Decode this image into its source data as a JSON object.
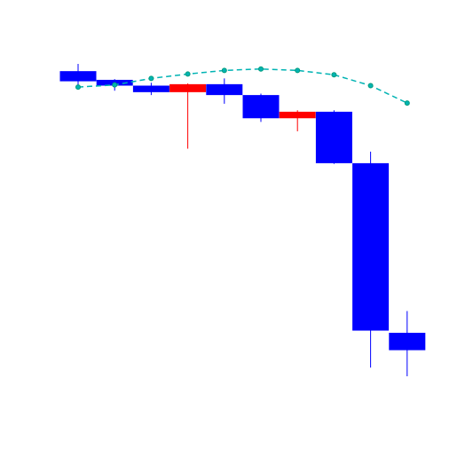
{
  "chart_data": {
    "type": "candlestick",
    "title": "",
    "xlabel": "",
    "ylabel": "",
    "axes_visible": false,
    "grid": false,
    "ylim": [
      -230,
      30
    ],
    "colors": {
      "up": "#ff0000",
      "down": "#0000ff",
      "overlay_line": "#00b3b3",
      "overlay_marker": "#009b7a"
    },
    "series": [
      {
        "x": 1,
        "open": 0.0,
        "close": -7.0,
        "high": 5.0,
        "low": -12.5
      },
      {
        "x": 2,
        "open": -6.0,
        "close": -10.0,
        "high": -5.5,
        "low": -13.5
      },
      {
        "x": 3,
        "open": -10.0,
        "close": -14.5,
        "high": -8.0,
        "low": -16.5
      },
      {
        "x": 4,
        "open": -14.5,
        "close": -9.0,
        "high": -8.5,
        "low": -53.5
      },
      {
        "x": 5,
        "open": -9.0,
        "close": -16.5,
        "high": -5.0,
        "low": -22.5
      },
      {
        "x": 6,
        "open": -16.5,
        "close": -32.5,
        "high": -15.5,
        "low": -35.0
      },
      {
        "x": 7,
        "open": -32.5,
        "close": -28.0,
        "high": -27.0,
        "low": -41.5
      },
      {
        "x": 8,
        "open": -28.0,
        "close": -63.5,
        "high": -27.0,
        "low": -64.0
      },
      {
        "x": 9,
        "open": -63.5,
        "close": -179.0,
        "high": -55.5,
        "low": -204.5
      },
      {
        "x": 10,
        "open": -180.5,
        "close": -192.5,
        "high": -165.5,
        "low": -210.5
      }
    ],
    "overlay": {
      "type": "line",
      "style": "dashed",
      "markers": true,
      "values": [
        -11.0,
        -9.5,
        -5.0,
        -2.0,
        0.5,
        1.5,
        0.5,
        -2.5,
        -10.0,
        -22.0
      ]
    }
  }
}
